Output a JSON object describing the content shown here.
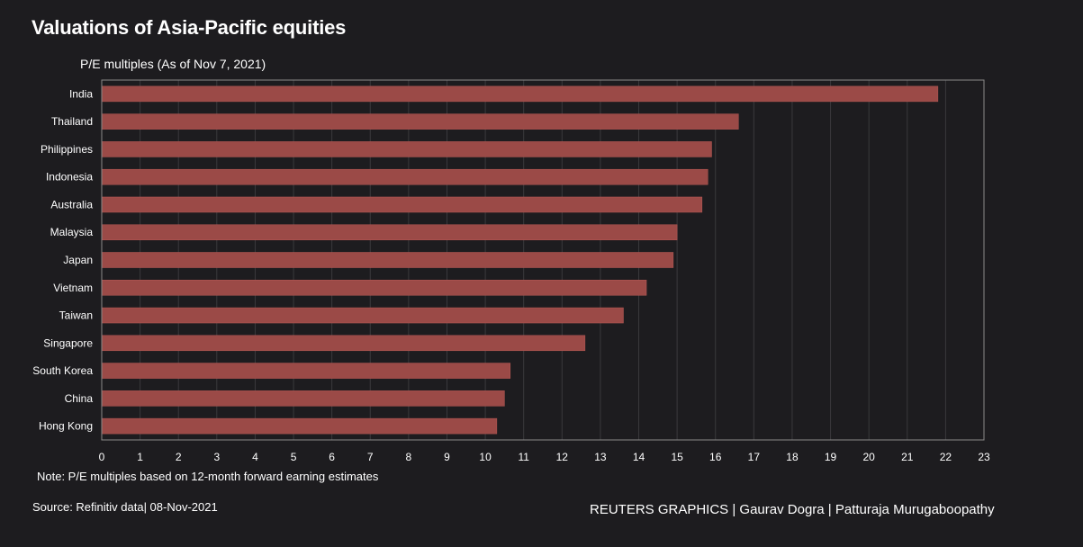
{
  "header": {
    "title": "Valuations of Asia-Pacific equities",
    "subtitle": "P/E multiples (As of Nov 7, 2021)"
  },
  "footer": {
    "note": "Note: P/E multiples based on 12-month forward earning estimates",
    "source": "Source: Refinitiv data| 08-Nov-2021",
    "credit": "REUTERS GRAPHICS | Gaurav Dogra | Patturaja Murugaboopathy"
  },
  "colors": {
    "bar": "#9b4a47",
    "bar_stroke": "#b85a56",
    "background": "#1d1c1f",
    "grid": "#3a393c",
    "frame": "#8a8a8a"
  },
  "chart_data": {
    "type": "bar",
    "orientation": "horizontal",
    "title": "Valuations of Asia-Pacific equities",
    "subtitle": "P/E multiples (As of Nov 7, 2021)",
    "categories": [
      "India",
      "Thailand",
      "Philippines",
      "Indonesia",
      "Australia",
      "Malaysia",
      "Japan",
      "Vietnam",
      "Taiwan",
      "Singapore",
      "South Korea",
      "China",
      "Hong Kong"
    ],
    "values": [
      21.8,
      16.6,
      15.9,
      15.8,
      15.65,
      15.0,
      14.9,
      14.2,
      13.6,
      12.6,
      10.65,
      10.5,
      10.3
    ],
    "xlim": [
      0,
      23
    ],
    "xticks": [
      "0",
      "1",
      "2",
      "3",
      "4",
      "5",
      "6",
      "7",
      "8",
      "9",
      "10",
      "11",
      "12",
      "13",
      "14",
      "15",
      "16",
      "17",
      "18",
      "19",
      "20",
      "21",
      "22",
      "23"
    ],
    "grid": true,
    "xlabel": "",
    "ylabel": ""
  }
}
